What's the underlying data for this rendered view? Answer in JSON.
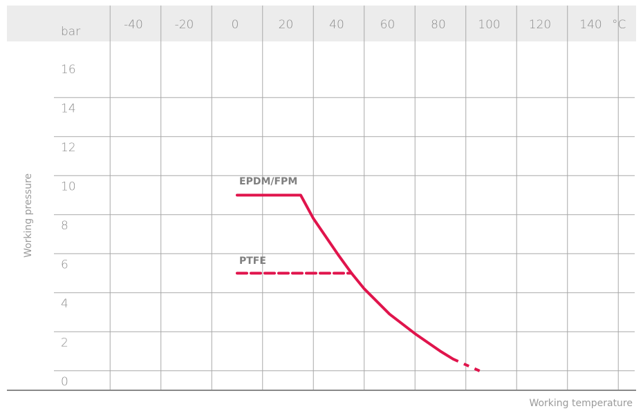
{
  "chart_data": {
    "type": "line",
    "xlabel": "Working temperature",
    "ylabel": "Working pressure",
    "x_unit": "°C",
    "y_unit": "bar",
    "x_ticks": [
      -40,
      -20,
      0,
      20,
      40,
      60,
      80,
      100,
      120,
      140
    ],
    "y_ticks": [
      0,
      2,
      4,
      6,
      8,
      10,
      12,
      14,
      16
    ],
    "xlim": [
      -60,
      160
    ],
    "ylim": [
      0,
      18
    ],
    "grid": true,
    "series": [
      {
        "name": "EPDM/FPM",
        "color": "#e0144c",
        "style": "solid",
        "points": [
          [
            0,
            10
          ],
          [
            25,
            10
          ],
          [
            30,
            8.8
          ],
          [
            40,
            6.9
          ],
          [
            45,
            6.0
          ],
          [
            50,
            5.2
          ],
          [
            60,
            3.9
          ],
          [
            70,
            2.9
          ],
          [
            80,
            2.0
          ],
          [
            85,
            1.6
          ]
        ]
      },
      {
        "name": "EPDM/FPM extension",
        "color": "#e0144c",
        "style": "dotted",
        "points": [
          [
            85,
            1.6
          ],
          [
            97,
            0.9
          ]
        ]
      },
      {
        "name": "PTFE",
        "color": "#e0144c",
        "style": "dashed",
        "points": [
          [
            0,
            6
          ],
          [
            45,
            6
          ]
        ]
      }
    ],
    "header_band_color": "#ececec",
    "grid_color": "#a8a8a8",
    "axis_color": "#888888"
  }
}
